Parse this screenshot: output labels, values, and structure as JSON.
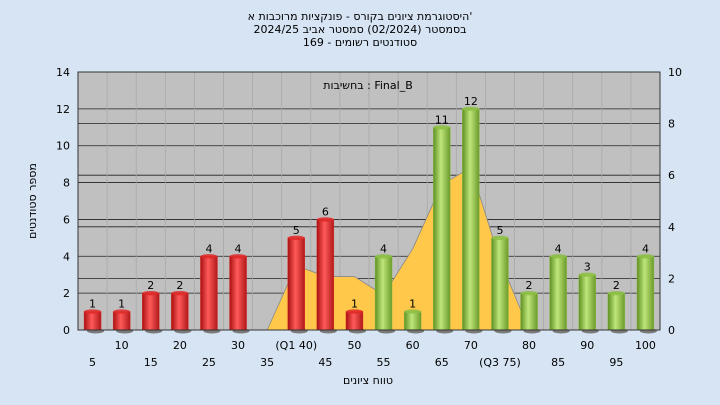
{
  "chart_data": {
    "type": "bar",
    "title_lines": [
      "היסטוגרמת ציונים בקורס - פונקציות מרוכבות א'",
      "בסמסטר  (02/2024)  סמסטר אביב 2024/25",
      "סטודנטים רשומים - 169"
    ],
    "annotation": "בחשיבות : Final_B",
    "xlabel": "טווח ציונים",
    "ylabel": "מספר סטודנטים",
    "ylim": [
      0,
      14
    ],
    "y_ticks": [
      0,
      2,
      4,
      6,
      8,
      10,
      12,
      14
    ],
    "y2lim": [
      0,
      10
    ],
    "y2_ticks": [
      0,
      2,
      4,
      6,
      8,
      10
    ],
    "grid": true,
    "x_tick_labels_row1": [
      "10",
      "20",
      "30",
      "(Q1 40)",
      "50",
      "60",
      "70",
      "80",
      "90",
      "100"
    ],
    "x_tick_labels_row2": [
      "5",
      "15",
      "25",
      "35",
      "45",
      "55",
      "65",
      "(Q3 75)",
      "85",
      "95"
    ],
    "categories": [
      "5",
      "10",
      "15",
      "20",
      "25",
      "30",
      "35",
      "40",
      "45",
      "50",
      "55",
      "60",
      "65",
      "70",
      "75",
      "80",
      "85",
      "90",
      "95",
      "100"
    ],
    "values": [
      1,
      1,
      2,
      2,
      4,
      4,
      0,
      5,
      6,
      1,
      4,
      1,
      11,
      12,
      5,
      2,
      4,
      3,
      2,
      4
    ],
    "bar_colors": [
      "red",
      "red",
      "red",
      "red",
      "red",
      "red",
      "red",
      "red",
      "red",
      "red",
      "green",
      "green",
      "green",
      "green",
      "green",
      "green",
      "green",
      "green",
      "green",
      "green"
    ],
    "area_values": [
      0,
      0,
      0,
      0,
      0,
      0,
      0,
      3.5,
      2.9,
      2.9,
      1.9,
      4.4,
      7.9,
      8.8,
      3.8,
      0,
      0,
      0,
      0,
      0
    ],
    "colors": {
      "red": "#e02828",
      "green": "#8cbf44",
      "area": "#ffc84a",
      "plot_bg": "#c0c0c0",
      "page_bg": "#d6e4f4"
    }
  }
}
